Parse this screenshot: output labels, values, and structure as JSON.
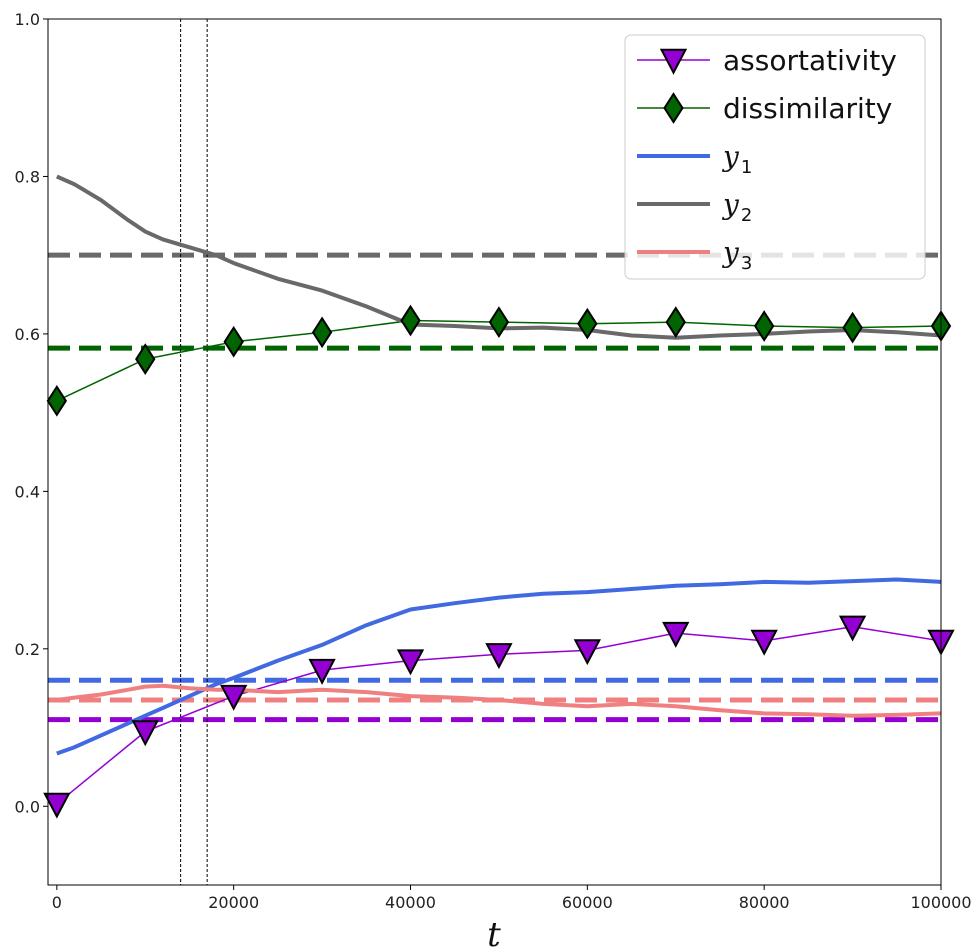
{
  "chart_data": {
    "type": "line",
    "title": "",
    "xlabel": "t",
    "ylabel": "",
    "xlim": [
      -1000,
      100000
    ],
    "ylim": [
      -0.1,
      1.0
    ],
    "x_ticks": [
      0,
      20000,
      40000,
      60000,
      80000,
      100000
    ],
    "x_tick_labels": [
      "0",
      "20000",
      "40000",
      "60000",
      "80000",
      "100000"
    ],
    "y_ticks": [
      0.0,
      0.2,
      0.4,
      0.6,
      0.8,
      1.0
    ],
    "y_tick_labels": [
      "0.0",
      "0.2",
      "0.4",
      "0.6",
      "0.8",
      "1.0"
    ],
    "grid": false,
    "legend_position": "top-right",
    "vertical_lines": [
      14000,
      17000
    ],
    "series": [
      {
        "name": "assortativity",
        "color": "#9400D3",
        "marker": "triangle-down",
        "x": [
          0,
          10000,
          20000,
          30000,
          40000,
          50000,
          60000,
          70000,
          80000,
          90000,
          100000
        ],
        "y": [
          0.003,
          0.095,
          0.14,
          0.173,
          0.185,
          0.193,
          0.198,
          0.22,
          0.21,
          0.228,
          0.21
        ],
        "reference_line": 0.11
      },
      {
        "name": "dissimilarity",
        "color": "#006400",
        "marker": "diamond",
        "x": [
          0,
          10000,
          20000,
          30000,
          40000,
          50000,
          60000,
          70000,
          80000,
          90000,
          100000
        ],
        "y": [
          0.515,
          0.568,
          0.59,
          0.602,
          0.617,
          0.615,
          0.613,
          0.615,
          0.61,
          0.608,
          0.61
        ],
        "reference_line": 0.582
      },
      {
        "name": "y1",
        "label_symbol": "y",
        "label_subscript": "1",
        "color": "#4169E1",
        "x": [
          0,
          2000,
          5000,
          8000,
          10000,
          12000,
          15000,
          18000,
          20000,
          25000,
          30000,
          35000,
          40000,
          45000,
          50000,
          55000,
          60000,
          65000,
          70000,
          75000,
          80000,
          85000,
          90000,
          95000,
          100000
        ],
        "y": [
          0.067,
          0.075,
          0.09,
          0.105,
          0.115,
          0.125,
          0.14,
          0.155,
          0.163,
          0.185,
          0.205,
          0.23,
          0.25,
          0.258,
          0.265,
          0.27,
          0.272,
          0.276,
          0.28,
          0.282,
          0.285,
          0.284,
          0.286,
          0.288,
          0.285
        ],
        "reference_line": 0.16
      },
      {
        "name": "y2",
        "label_symbol": "y",
        "label_subscript": "2",
        "color": "#696969",
        "x": [
          0,
          2000,
          5000,
          8000,
          10000,
          12000,
          15000,
          18000,
          20000,
          25000,
          30000,
          35000,
          40000,
          45000,
          50000,
          55000,
          60000,
          65000,
          70000,
          75000,
          80000,
          85000,
          90000,
          95000,
          100000
        ],
        "y": [
          0.8,
          0.79,
          0.77,
          0.745,
          0.73,
          0.72,
          0.71,
          0.7,
          0.69,
          0.67,
          0.655,
          0.635,
          0.612,
          0.61,
          0.607,
          0.608,
          0.605,
          0.598,
          0.595,
          0.598,
          0.6,
          0.603,
          0.605,
          0.602,
          0.598
        ],
        "reference_line": 0.7
      },
      {
        "name": "y3",
        "label_symbol": "y",
        "label_subscript": "3",
        "color": "#F08080",
        "x": [
          0,
          2000,
          5000,
          8000,
          10000,
          12000,
          15000,
          18000,
          20000,
          25000,
          30000,
          35000,
          40000,
          45000,
          50000,
          55000,
          60000,
          65000,
          70000,
          75000,
          80000,
          85000,
          90000,
          95000,
          100000
        ],
        "y": [
          0.135,
          0.138,
          0.142,
          0.148,
          0.152,
          0.153,
          0.15,
          0.148,
          0.148,
          0.145,
          0.148,
          0.145,
          0.14,
          0.138,
          0.135,
          0.13,
          0.127,
          0.13,
          0.127,
          0.122,
          0.118,
          0.117,
          0.115,
          0.116,
          0.118
        ],
        "reference_line": 0.135
      }
    ]
  }
}
